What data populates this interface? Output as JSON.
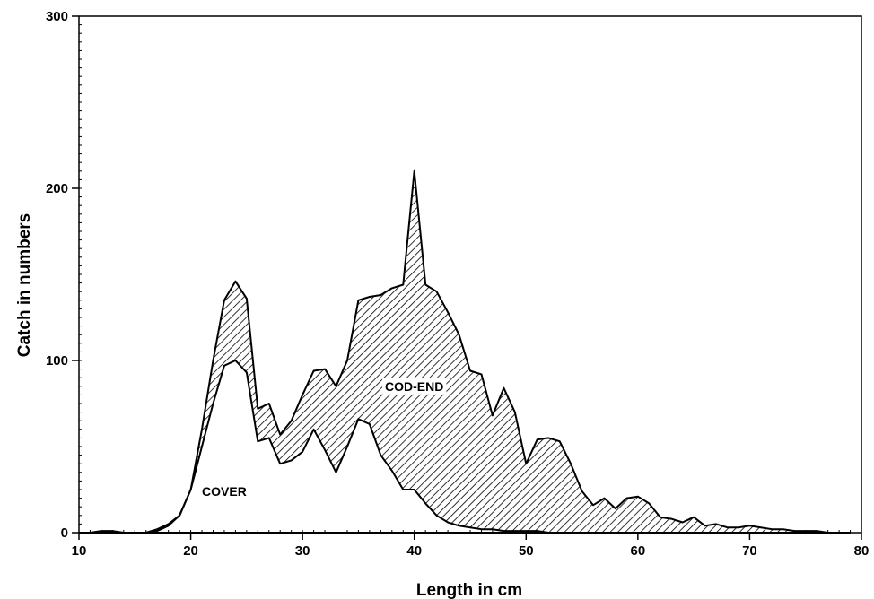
{
  "chart_data": {
    "type": "area",
    "title": "",
    "xlabel": "Length in cm",
    "ylabel": "Catch in numbers",
    "xlim": [
      10,
      80
    ],
    "ylim": [
      0,
      300
    ],
    "xticks": [
      10,
      20,
      30,
      40,
      50,
      60,
      70,
      80
    ],
    "yticks": [
      0,
      100,
      200,
      300
    ],
    "grid": false,
    "legend": "none",
    "x": [
      10,
      11,
      12,
      13,
      14,
      15,
      16,
      17,
      18,
      19,
      20,
      21,
      22,
      23,
      24,
      25,
      26,
      27,
      28,
      29,
      30,
      31,
      32,
      33,
      34,
      35,
      36,
      37,
      38,
      39,
      40,
      41,
      42,
      43,
      44,
      45,
      46,
      47,
      48,
      49,
      50,
      51,
      52,
      53,
      54,
      55,
      56,
      57,
      58,
      59,
      60,
      61,
      62,
      63,
      64,
      65,
      66,
      67,
      68,
      69,
      70,
      71,
      72,
      73,
      74,
      75,
      76,
      77,
      78,
      79
    ],
    "series": [
      {
        "name": "COD-END",
        "style": "hatched",
        "values": [
          0,
          0,
          1,
          1,
          0,
          0,
          0,
          2,
          5,
          10,
          25,
          60,
          100,
          135,
          146,
          136,
          72,
          75,
          57,
          65,
          80,
          94,
          95,
          85,
          100,
          135,
          137,
          138,
          142,
          144,
          210,
          144,
          140,
          128,
          115,
          94,
          92,
          68,
          84,
          70,
          40,
          54,
          55,
          53,
          40,
          24,
          16,
          20,
          14,
          20,
          21,
          17,
          9,
          8,
          6,
          9,
          4,
          5,
          3,
          3,
          4,
          3,
          2,
          2,
          1,
          1,
          1,
          0,
          0,
          0
        ]
      },
      {
        "name": "COVER",
        "style": "blank",
        "values": [
          0,
          0,
          0,
          0,
          0,
          0,
          0,
          1,
          4,
          10,
          25,
          50,
          75,
          97,
          100,
          93,
          53,
          55,
          40,
          42,
          47,
          60,
          48,
          35,
          50,
          66,
          63,
          45,
          36,
          25,
          25,
          17,
          10,
          6,
          4,
          3,
          2,
          2,
          1,
          1,
          1,
          1,
          0,
          0,
          0,
          0,
          0,
          0,
          0,
          0,
          0,
          0,
          0,
          0,
          0,
          0,
          0,
          0,
          0,
          0,
          0,
          0,
          0,
          0,
          0,
          0,
          0,
          0,
          0,
          0
        ]
      }
    ],
    "annotations": [
      {
        "text": "COD-END",
        "x": 40,
        "y": 85
      },
      {
        "text": "COVER",
        "x": 23,
        "y": 24
      }
    ]
  }
}
